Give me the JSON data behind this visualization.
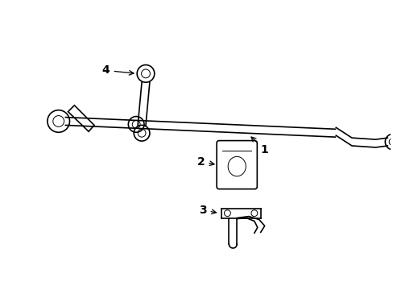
{
  "background_color": "#ffffff",
  "line_color": "#000000",
  "lw": 1.2,
  "tlw": 0.7,
  "figsize": [
    4.89,
    3.6
  ],
  "dpi": 100,
  "label_fontsize": 10
}
